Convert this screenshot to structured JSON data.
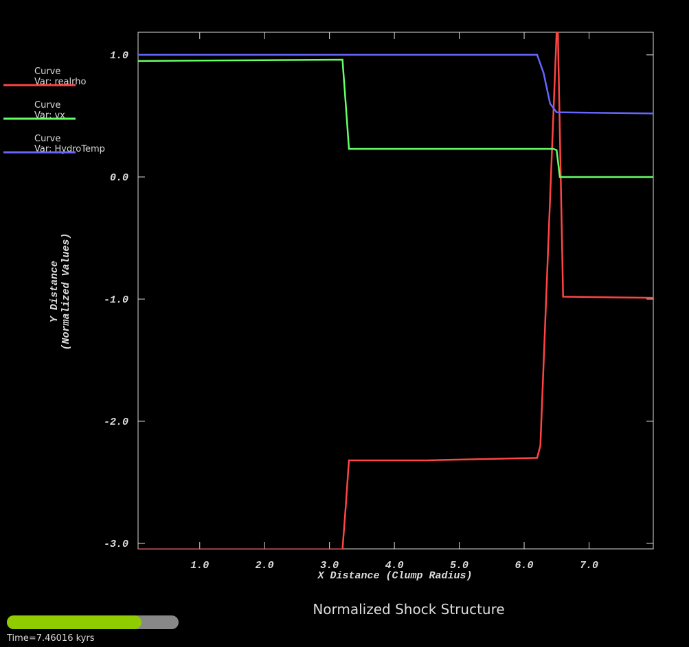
{
  "chart_data": {
    "type": "line",
    "title": "Normalized Shock Structure",
    "xlabel": "X Distance (Clump Radius)",
    "ylabel": [
      "Y Distance",
      "(Normalized Values)"
    ],
    "time_label": "Time=7.46016 kyrs",
    "xlim": [
      0.05,
      7.99
    ],
    "ylim": [
      -3.045,
      1.185
    ],
    "xticks": [
      {
        "value": 1,
        "label": "1.0"
      },
      {
        "value": 2,
        "label": "2.0"
      },
      {
        "value": 3,
        "label": "3.0"
      },
      {
        "value": 4,
        "label": "4.0"
      },
      {
        "value": 5,
        "label": "5.0"
      },
      {
        "value": 6,
        "label": "6.0"
      },
      {
        "value": 7,
        "label": "7.0"
      }
    ],
    "yticks": [
      {
        "value": -3,
        "label": "-3.0"
      },
      {
        "value": -2,
        "label": "-2.0"
      },
      {
        "value": -1,
        "label": "-1.0"
      },
      {
        "value": 0,
        "label": "0.0"
      },
      {
        "value": 1,
        "label": "1.0"
      }
    ],
    "legend_heading": "Curve",
    "series": [
      {
        "name": "Var: realrho",
        "color": "#ff4444",
        "x": [
          0.05,
          3.2,
          3.25,
          3.3,
          4.5,
          6.2,
          6.25,
          6.5,
          6.52,
          6.6,
          7.99
        ],
        "values": [
          -3.05,
          -3.05,
          -2.7,
          -2.32,
          -2.32,
          -2.3,
          -2.2,
          1.18,
          1.18,
          -0.98,
          -0.99
        ]
      },
      {
        "name": "Var: vx",
        "color": "#66ff66",
        "x": [
          0.05,
          3.2,
          3.25,
          3.3,
          6.45,
          6.5,
          6.55,
          7.99
        ],
        "values": [
          0.95,
          0.96,
          0.6,
          0.23,
          0.23,
          0.22,
          0.0,
          0.0
        ]
      },
      {
        "name": "Var: HydroTemp",
        "color": "#6666ff",
        "x": [
          0.05,
          6.2,
          6.3,
          6.4,
          6.5,
          7.99
        ],
        "values": [
          1.0,
          1.0,
          0.85,
          0.6,
          0.53,
          0.52
        ]
      }
    ]
  }
}
